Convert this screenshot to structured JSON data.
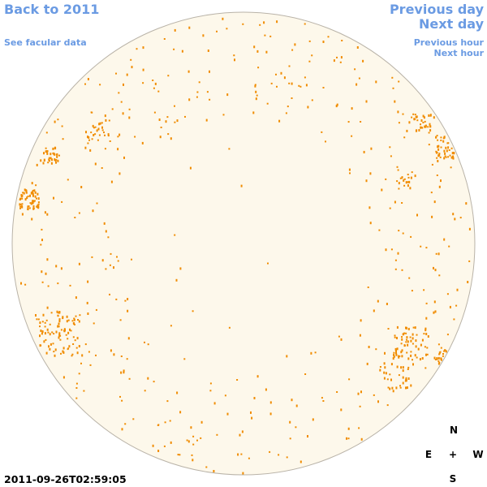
{
  "header": {
    "back_link": "Back to 2011",
    "facular_link": "See facular data"
  },
  "navigation": {
    "previous_day": "Previous day",
    "next_day": "Next day",
    "previous_hour": "Previous hour",
    "next_hour": "Next hour"
  },
  "compass": {
    "north": "N",
    "east": "E",
    "center": "+",
    "west": "W",
    "south": "S"
  },
  "timestamp": "2011-09-26T02:59:05"
}
